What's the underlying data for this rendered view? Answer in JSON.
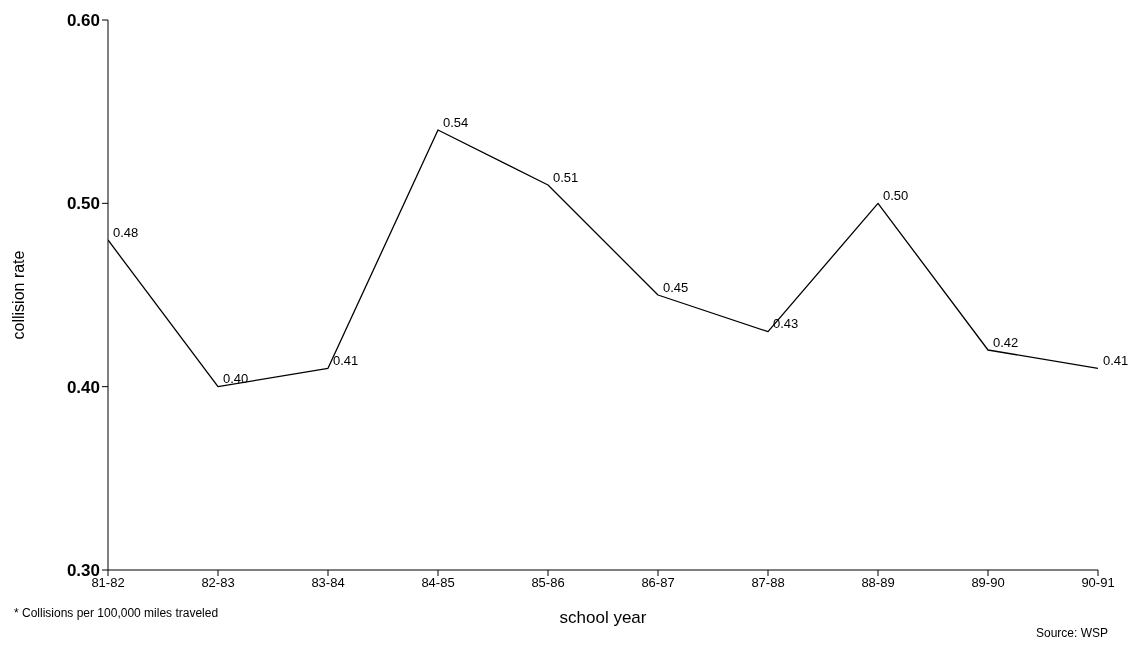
{
  "chart_data": {
    "type": "line",
    "xlabel": "school year",
    "ylabel": "collision rate",
    "categories": [
      "81-82",
      "82-83",
      "83-84",
      "84-85",
      "85-86",
      "86-87",
      "87-88",
      "88-89",
      "89-90",
      "90-91"
    ],
    "values": [
      0.48,
      0.4,
      0.41,
      0.54,
      0.51,
      0.45,
      0.43,
      0.5,
      0.42,
      0.41
    ],
    "value_labels": [
      "0.48",
      "0.40",
      "0.41",
      "0.54",
      "0.51",
      "0.45",
      "0.43",
      "0.50",
      "0.42",
      "0.41"
    ],
    "color": "#000000",
    "ylim": [
      0.3,
      0.6
    ],
    "yticks": [
      {
        "value": 0.3,
        "label": "0.30"
      },
      {
        "value": 0.4,
        "label": "0.40"
      },
      {
        "value": 0.5,
        "label": "0.50"
      },
      {
        "value": 0.6,
        "label": "0.60"
      }
    ],
    "annotations": [
      "* Collisions per 100,000 miles traveled",
      "Source: WSP"
    ]
  }
}
